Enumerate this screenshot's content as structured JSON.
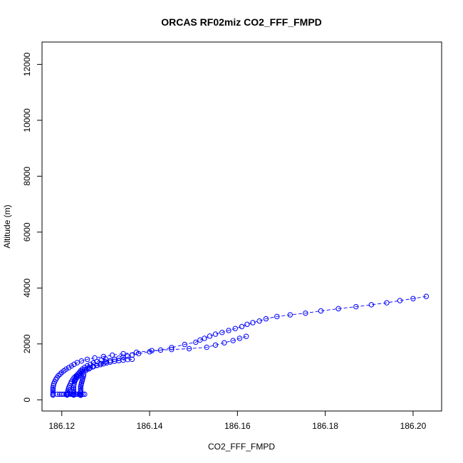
{
  "chart_data": {
    "type": "scatter",
    "title": "ORCAS RF02miz CO2_FFF_FMPD",
    "xlabel": "CO2_FFF_FMPD",
    "ylabel": "Altitude (m)",
    "xlim": [
      186.1155,
      186.2065
    ],
    "ylim": [
      -400,
      12800
    ],
    "xticks": [
      186.12,
      186.14,
      186.16,
      186.18,
      186.2
    ],
    "xtick_labels": [
      "186.12",
      "186.14",
      "186.16",
      "186.18",
      "186.20"
    ],
    "yticks": [
      0,
      2000,
      4000,
      6000,
      8000,
      10000,
      12000
    ],
    "ytick_labels": [
      "0",
      "2000",
      "4000",
      "6000",
      "8000",
      "10000",
      "12000"
    ],
    "grid": false,
    "legend": "none",
    "color": "#0000ff",
    "marker": "open-circle",
    "line_style": "dashed",
    "series": [
      {
        "x": [
          186.203,
          186.2,
          186.197,
          186.194,
          186.1905,
          186.187,
          186.183,
          186.179,
          186.1755,
          186.172,
          186.169,
          186.1665,
          186.165,
          186.1635,
          186.1622,
          186.161,
          186.1595,
          186.158,
          186.1565,
          186.155,
          186.1537,
          186.1525,
          186.1515,
          186.1505,
          186.148,
          186.145,
          186.1425,
          186.14,
          186.1375,
          186.136,
          186.135,
          186.134,
          186.133,
          186.132,
          186.131,
          186.13,
          186.129,
          186.128,
          186.127,
          186.1262,
          186.1255,
          186.1248,
          186.1243,
          186.1238,
          186.1235,
          186.1232,
          186.123
        ],
        "y": [
          3700,
          3620,
          3550,
          3470,
          3400,
          3330,
          3260,
          3180,
          3100,
          3040,
          2980,
          2900,
          2820,
          2760,
          2700,
          2620,
          2550,
          2480,
          2410,
          2350,
          2280,
          2200,
          2140,
          2060,
          1980,
          1870,
          1780,
          1720,
          1650,
          1600,
          1560,
          1530,
          1490,
          1450,
          1400,
          1360,
          1300,
          1240,
          1180,
          1110,
          1050,
          990,
          930,
          860,
          800,
          740,
          680
        ]
      },
      {
        "x": [
          186.162,
          186.1605,
          186.159,
          186.157,
          186.155,
          186.153,
          186.149,
          186.145,
          186.1405,
          186.137,
          186.134,
          186.1315,
          186.1295,
          186.1275,
          186.1258,
          186.1245,
          186.1235,
          186.1228,
          186.1222,
          186.1216,
          186.121,
          186.1205,
          186.12,
          186.1196,
          186.1192,
          186.1189,
          186.1186,
          186.1184,
          186.1182,
          186.1181,
          186.118,
          186.118,
          186.118,
          186.118,
          186.118,
          186.118,
          186.118
        ],
        "y": [
          2270,
          2200,
          2120,
          2040,
          1960,
          1880,
          1830,
          1800,
          1760,
          1700,
          1650,
          1600,
          1550,
          1500,
          1450,
          1390,
          1330,
          1270,
          1210,
          1150,
          1100,
          1040,
          980,
          920,
          860,
          790,
          720,
          650,
          580,
          510,
          440,
          380,
          320,
          260,
          210,
          180,
          170
        ]
      },
      {
        "x": [
          186.136,
          186.135,
          186.134,
          186.133,
          186.132,
          186.131,
          186.1302,
          186.1295,
          186.1288,
          186.128,
          186.1272,
          186.1265,
          186.1258,
          186.1252,
          186.1246,
          186.124,
          186.1236,
          186.1232,
          186.1228,
          186.1225,
          186.1222,
          186.122,
          186.1218,
          186.1216,
          186.1215,
          186.1214,
          186.1213,
          186.1212,
          186.1212,
          186.1212
        ],
        "y": [
          1450,
          1440,
          1420,
          1400,
          1380,
          1350,
          1320,
          1290,
          1260,
          1230,
          1190,
          1150,
          1110,
          1070,
          1020,
          970,
          910,
          850,
          790,
          720,
          650,
          580,
          510,
          440,
          380,
          320,
          260,
          210,
          180,
          170
        ]
      },
      {
        "x": [
          186.13,
          186.129,
          186.128,
          186.1272,
          186.1265,
          186.1258,
          186.1252,
          186.1247,
          186.1243,
          186.124,
          186.1237,
          186.1234,
          186.1232,
          186.123,
          186.1229,
          186.1228,
          186.1227,
          186.1227,
          186.1227,
          186.1227,
          186.1227,
          186.1227,
          186.1227,
          186.1227
        ],
        "y": [
          1460,
          1420,
          1370,
          1320,
          1270,
          1220,
          1160,
          1100,
          1040,
          980,
          910,
          850,
          780,
          710,
          640,
          570,
          500,
          430,
          370,
          310,
          250,
          200,
          180,
          170
        ]
      },
      {
        "x": [
          186.125,
          186.1249,
          186.1248,
          186.1247,
          186.1246,
          186.1245,
          186.1244,
          186.1243,
          186.1243,
          186.1243,
          186.1243,
          186.1243,
          186.1243,
          186.1243,
          186.1243,
          186.1243
        ],
        "y": [
          900,
          840,
          780,
          720,
          660,
          600,
          540,
          480,
          420,
          360,
          300,
          250,
          210,
          180,
          170,
          165
        ]
      },
      {
        "x": [
          186.119,
          186.1195,
          186.12,
          186.1205,
          186.121,
          186.1215,
          186.122,
          186.1224,
          186.1228,
          186.1232,
          186.1236,
          186.124,
          186.1244,
          186.1248,
          186.1252
        ],
        "y": [
          200,
          200,
          200,
          200,
          200,
          200,
          200,
          200,
          200,
          200,
          200,
          200,
          200,
          200,
          200
        ]
      }
    ]
  }
}
